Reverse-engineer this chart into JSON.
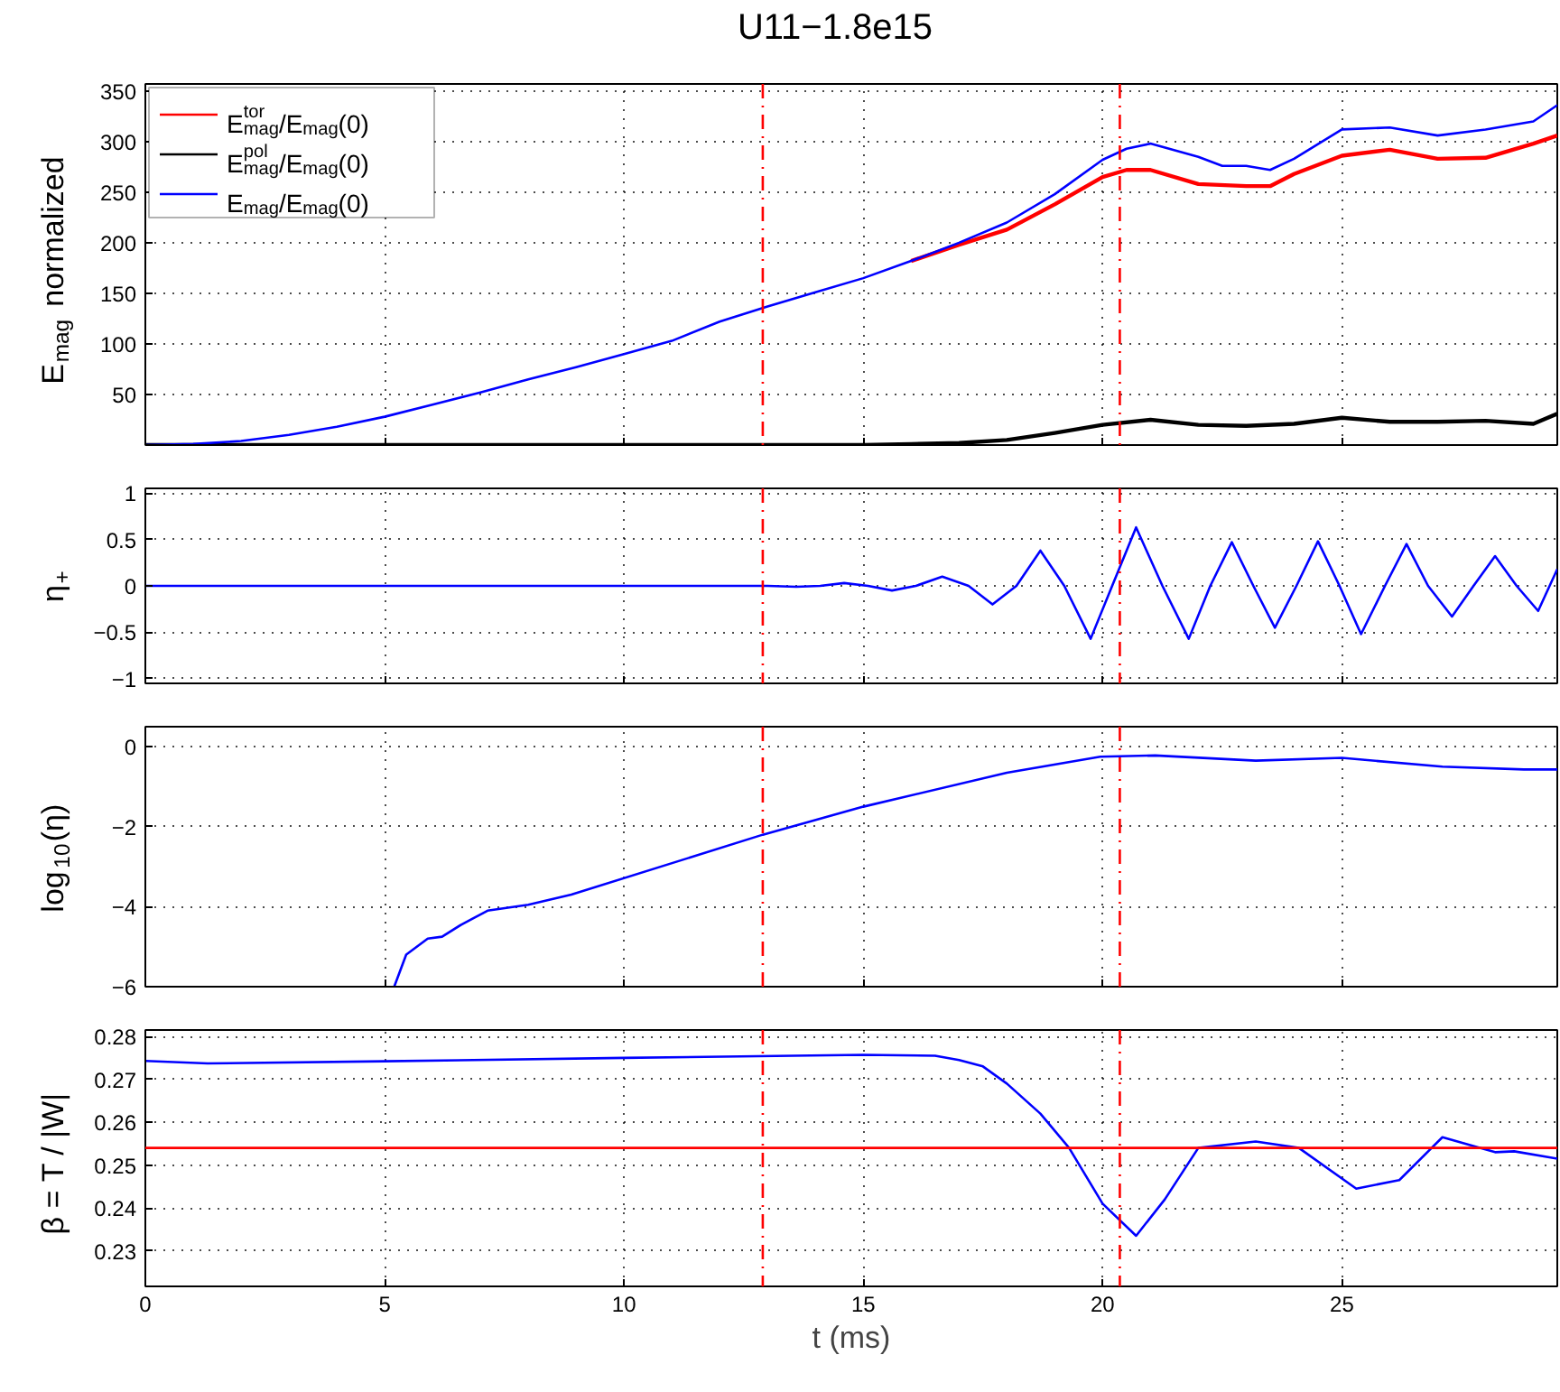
{
  "chart_data": [
    {
      "type": "line",
      "title": "U11−1.8e15",
      "ylabel": "E$_{mag}$ normalized",
      "xlim": [
        0,
        29.5
      ],
      "xticks": [
        0,
        5,
        10,
        15,
        20,
        25
      ],
      "ylim": [
        0,
        357
      ],
      "yticks": [
        50,
        100,
        150,
        200,
        250,
        300,
        350
      ],
      "grid": true,
      "legend": "top left",
      "tick_labels": "y",
      "series": [
        {
          "name": "E$^{tor}$$_{mag}$/E$_{mag}$(0)",
          "color": "#ff0000",
          "x": [
            16,
            17,
            18,
            19,
            20,
            20.5,
            21,
            22,
            23,
            23.5,
            24,
            25,
            26,
            27,
            28,
            29,
            29.5
          ],
          "values": [
            182,
            198,
            213,
            238,
            265,
            272,
            272,
            258,
            256,
            256,
            268,
            286,
            292,
            283,
            284,
            298,
            306
          ]
        },
        {
          "name": "E$^{pol}$$_{mag}$/E$_{mag}$(0)",
          "color": "#000000",
          "x": [
            0,
            5,
            10,
            15,
            16,
            17,
            18,
            19,
            20,
            21,
            22,
            23,
            24,
            25,
            26,
            27,
            28,
            29,
            29.5
          ],
          "values": [
            0,
            0,
            0,
            0,
            1,
            2,
            5,
            12,
            20,
            25,
            20,
            19,
            21,
            27,
            23,
            23,
            24,
            21,
            31
          ]
        },
        {
          "name": "E$_{mag}$/E$_{mag}$(0)",
          "color": "#0000ff",
          "x": [
            0,
            1,
            2,
            3,
            4,
            5,
            6,
            7,
            8,
            9,
            10,
            11,
            12,
            13,
            14,
            15,
            16,
            17,
            18,
            19,
            20,
            20.5,
            21,
            22,
            22.5,
            23,
            23.5,
            24,
            25,
            26,
            27,
            28,
            29,
            29.5
          ],
          "values": [
            0,
            1,
            4,
            10,
            18,
            28,
            40,
            52,
            65,
            77,
            90,
            103,
            122,
            137,
            151,
            165,
            182,
            200,
            220,
            248,
            282,
            293,
            298,
            285,
            276,
            276,
            272,
            283,
            312,
            314,
            306,
            312,
            320,
            336
          ]
        }
      ],
      "ref_lines": [
        {
          "axis": "x",
          "value": 12.9,
          "color": "#ff0000",
          "line_style": "dashed"
        },
        {
          "axis": "x",
          "value": 20.36,
          "color": "#ff0000",
          "line_style": "dashed"
        }
      ]
    },
    {
      "type": "line",
      "ylabel": "η$_{+}$",
      "xlim": [
        0,
        29.5
      ],
      "xticks": [
        0,
        5,
        10,
        15,
        20,
        25
      ],
      "ylim": [
        -1.05,
        1.05
      ],
      "yticks": [
        -1,
        -0.5,
        0,
        0.5,
        1
      ],
      "grid": true,
      "tick_labels": "y",
      "series": [
        {
          "color": "#0000ff",
          "x": [
            0,
            13,
            13.6,
            14.1,
            14.6,
            15.1,
            15.6,
            16.1,
            16.65,
            17.2,
            17.7,
            18.2,
            18.7,
            19.2,
            19.75,
            20.2,
            20.7,
            21.25,
            21.8,
            22.25,
            22.7,
            23.15,
            23.6,
            24.05,
            24.5,
            24.95,
            25.4,
            25.9,
            26.35,
            26.8,
            27.3,
            27.75,
            28.2,
            28.65,
            29.1,
            29.5
          ],
          "values": [
            0,
            0,
            -0.01,
            0,
            0.03,
            0,
            -0.05,
            0,
            0.1,
            0,
            -0.2,
            0,
            0.38,
            0,
            -0.57,
            0,
            0.63,
            0,
            -0.57,
            0,
            0.47,
            0,
            -0.45,
            0,
            0.48,
            0,
            -0.52,
            0,
            0.45,
            0,
            -0.33,
            0,
            0.32,
            0,
            -0.27,
            0.18
          ]
        }
      ],
      "ref_lines": [
        {
          "axis": "x",
          "value": 12.9,
          "color": "#ff0000",
          "line_style": "dashed"
        },
        {
          "axis": "x",
          "value": 20.36,
          "color": "#ff0000",
          "line_style": "dashed"
        }
      ]
    },
    {
      "type": "line",
      "ylabel": "log$_{10}$(η)",
      "xlim": [
        0,
        29.5
      ],
      "xticks": [
        0,
        5,
        10,
        15,
        20,
        25
      ],
      "ylim": [
        -6,
        0.5
      ],
      "yticks": [
        -6,
        -4,
        -2,
        0
      ],
      "grid": true,
      "tick_labels": "y",
      "series": [
        {
          "color": "#0000ff",
          "x": [
            5.2,
            5.45,
            5.9,
            6.2,
            6.6,
            7.15,
            8.0,
            8.9,
            12.9,
            15.0,
            18.0,
            19.95,
            21.1,
            23.2,
            25.0,
            27.1,
            28.8,
            29.5
          ],
          "values": [
            -6,
            -5.2,
            -4.8,
            -4.75,
            -4.45,
            -4.1,
            -3.95,
            -3.7,
            -2.2,
            -1.5,
            -0.65,
            -0.25,
            -0.22,
            -0.35,
            -0.28,
            -0.5,
            -0.57,
            -0.57
          ]
        }
      ],
      "ref_lines": [
        {
          "axis": "x",
          "value": 12.9,
          "color": "#ff0000",
          "line_style": "dashed"
        },
        {
          "axis": "x",
          "value": 20.36,
          "color": "#ff0000",
          "line_style": "dashed"
        }
      ]
    },
    {
      "type": "line",
      "xlabel": "t (ms)",
      "ylabel": "β = T / |W|",
      "xlim": [
        0,
        29.5
      ],
      "xticks": [
        0,
        5,
        10,
        15,
        20,
        25
      ],
      "ylim": [
        0.2217,
        0.2815
      ],
      "yticks": [
        0.23,
        0.24,
        0.25,
        0.26,
        0.27,
        0.28
      ],
      "grid": true,
      "series": [
        {
          "color": "#0000ff",
          "x": [
            0,
            1.3,
            5,
            10,
            15,
            16.5,
            17,
            17.5,
            18,
            18.7,
            19.3,
            20,
            20.7,
            21.3,
            22,
            23.2,
            24.1,
            25.3,
            26.2,
            27.1,
            28.2,
            28.6,
            29.5
          ],
          "values": [
            0.2743,
            0.2737,
            0.2742,
            0.275,
            0.2757,
            0.2755,
            0.2745,
            0.273,
            0.269,
            0.262,
            0.254,
            0.241,
            0.2335,
            0.242,
            0.254,
            0.2555,
            0.254,
            0.2445,
            0.2465,
            0.2565,
            0.253,
            0.2532,
            0.2515
          ]
        }
      ],
      "ref_lines": [
        {
          "axis": "y",
          "value": 0.254,
          "color": "#ff0000",
          "line_style": "solid"
        },
        {
          "axis": "x",
          "value": 12.9,
          "color": "#ff0000",
          "line_style": "dashed"
        },
        {
          "axis": "x",
          "value": 20.36,
          "color": "#ff0000",
          "line_style": "dashed"
        }
      ]
    }
  ]
}
